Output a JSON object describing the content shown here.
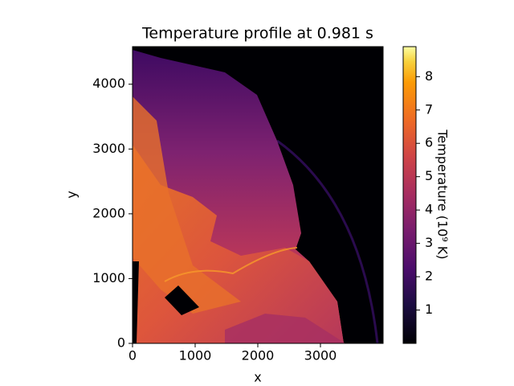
{
  "chart_data": {
    "type": "heatmap",
    "title": "Temperature profile at 0.981 s",
    "x_label": "x",
    "y_label": "y",
    "xlim": [
      0,
      4000
    ],
    "xticks": [
      0,
      1000,
      2000,
      3000
    ],
    "ylim": [
      0,
      4580
    ],
    "yticks": [
      0,
      1000,
      2000,
      3000,
      4000
    ],
    "colormap": "inferno",
    "colorbar": {
      "label": "Temperature (10⁹ K)",
      "lim": [
        0,
        8.9
      ],
      "ticks": [
        1,
        2,
        3,
        4,
        5,
        6,
        7,
        8
      ]
    }
  }
}
